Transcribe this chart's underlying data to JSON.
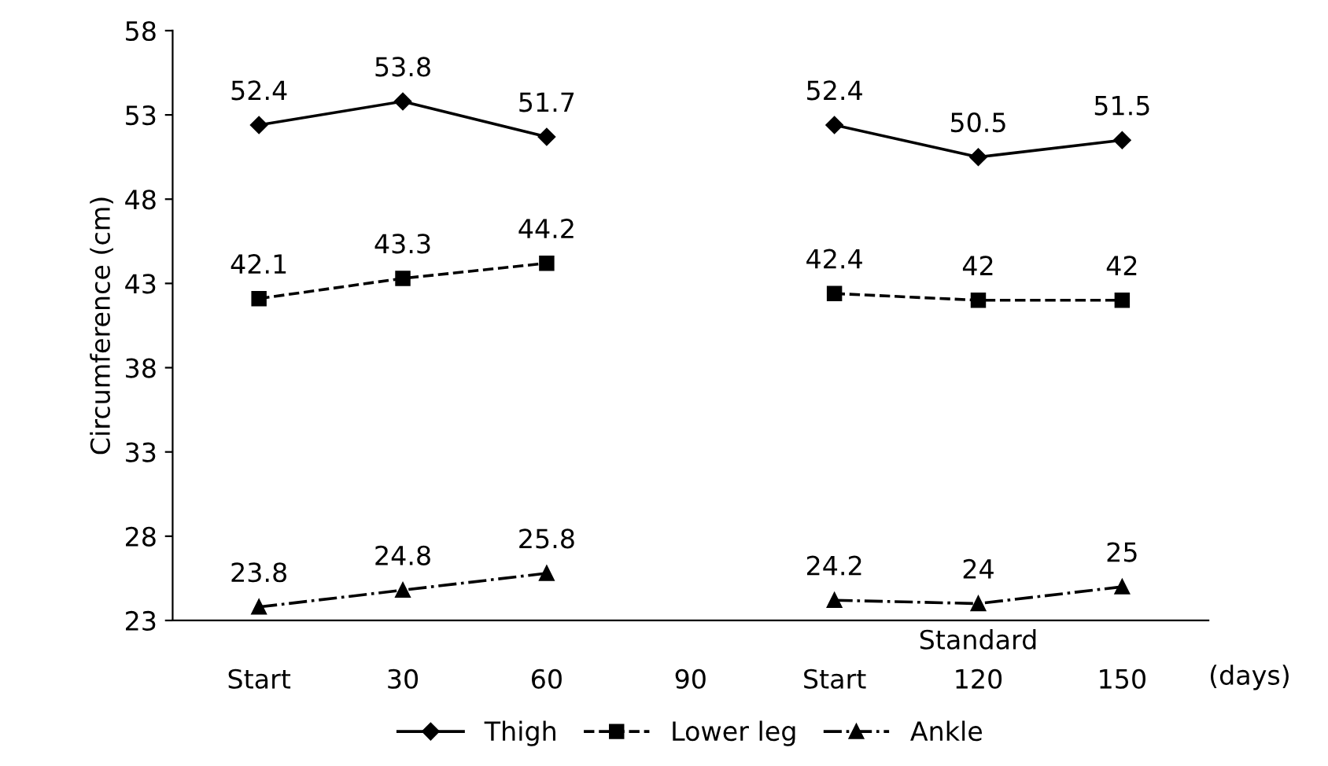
{
  "chart_data": {
    "type": "line",
    "ylabel": "Circumference (cm)",
    "xlabel": "(days)",
    "categories": [
      "Start",
      "30",
      "60",
      "90",
      "Start",
      "120",
      "150"
    ],
    "series": [
      {
        "name": "Thigh",
        "color": "#000000",
        "marker": "diamond",
        "line_style": "solid",
        "values": [
          52.4,
          53.8,
          51.7,
          null,
          52.4,
          50.5,
          51.5
        ]
      },
      {
        "name": "Lower leg",
        "color": "#000000",
        "marker": "square",
        "line_style": "dashed",
        "values": [
          42.1,
          43.3,
          44.2,
          null,
          42.4,
          42,
          42
        ]
      },
      {
        "name": "Ankle",
        "color": "#000000",
        "marker": "triangle",
        "line_style": "dotted",
        "values": [
          23.8,
          24.8,
          25.8,
          null,
          24.2,
          24,
          25
        ]
      }
    ],
    "ylim": [
      23,
      58
    ],
    "yticks": [
      23,
      28,
      33,
      38,
      43,
      48,
      53,
      58
    ],
    "annotations": [
      "Standard"
    ],
    "data_labels": true,
    "grid": false,
    "legend": "bottom"
  }
}
